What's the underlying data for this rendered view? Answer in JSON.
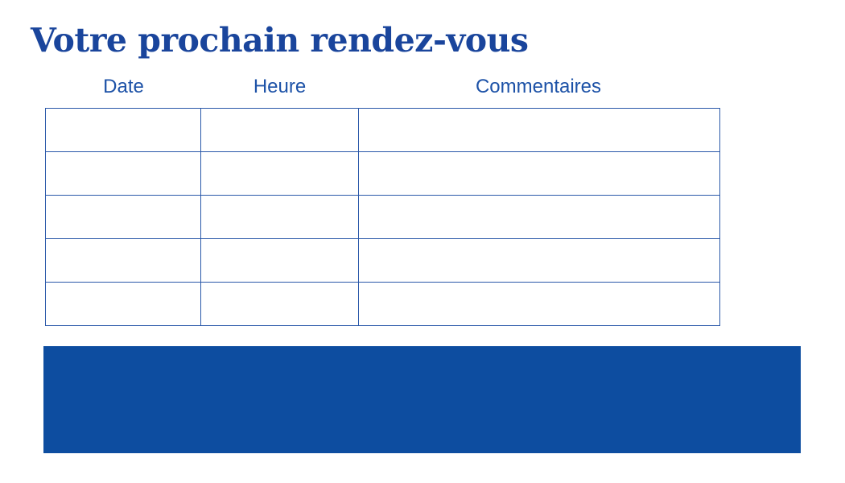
{
  "title": "Votre prochain rendez-vous",
  "table": {
    "columns": [
      {
        "label": "Date"
      },
      {
        "label": "Heure"
      },
      {
        "label": "Commentaires"
      }
    ],
    "rows": [
      [
        "",
        "",
        ""
      ],
      [
        "",
        "",
        ""
      ],
      [
        "",
        "",
        ""
      ],
      [
        "",
        "",
        ""
      ],
      [
        "",
        "",
        ""
      ]
    ]
  },
  "banner": {
    "text": ""
  },
  "colors": {
    "primary_blue": "#1a459c",
    "header_blue": "#1d52a7",
    "table_border": "#2a58a9",
    "banner_fill": "#0d4da0",
    "page_bg": "#ffffff"
  }
}
